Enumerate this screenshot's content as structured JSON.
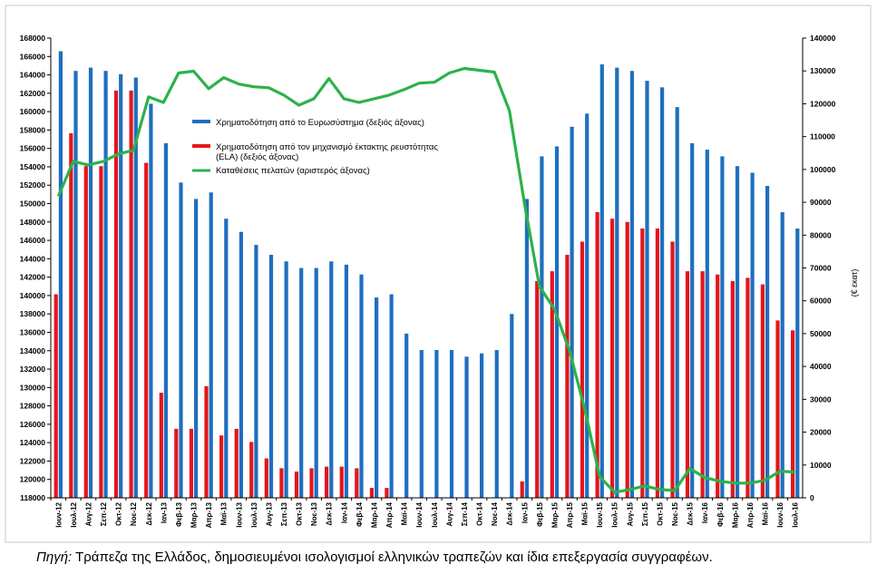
{
  "chart_data": {
    "type": "bar",
    "categories": [
      "Ιουν-12",
      "Ιουλ-12",
      "Αυγ-12",
      "Σεπ-12",
      "Οκτ-12",
      "Νοε-12",
      "Δεκ-12",
      "Ιαν-13",
      "Φεβ-13",
      "Μαρ-13",
      "Απρ-13",
      "Μαϊ-13",
      "Ιουν-13",
      "Ιουλ-13",
      "Αυγ-13",
      "Σεπ-13",
      "Οκτ-13",
      "Νοε-13",
      "Δεκ-13",
      "Ιαν-14",
      "Φεβ-14",
      "Μαρ-14",
      "Απρ-14",
      "Μαϊ-14",
      "Ιουν-14",
      "Ιουλ-14",
      "Αυγ-14",
      "Σεπ-14",
      "Οκτ-14",
      "Νοε-14",
      "Δεκ-14",
      "Ιαν-15",
      "Φεβ-15",
      "Μαρ-15",
      "Απρ-15",
      "Μαϊ-15",
      "Ιουν-15",
      "Ιουλ-15",
      "Αυγ-15",
      "Σεπ-15",
      "Οκτ-15",
      "Νοε-15",
      "Δεκ-15",
      "Ιαν-16",
      "Φεβ-16",
      "Μαρ-16",
      "Απρ-16",
      "Μαϊ-16",
      "Ιουν-16",
      "Ιουλ-16"
    ],
    "series": [
      {
        "name": "Χρηματοδότηση από το Ευρωσύστημα (δεξιός άξονας)",
        "axis": "right",
        "color": "#1f6fbf",
        "values": [
          136000,
          130000,
          131000,
          130000,
          129000,
          128000,
          120000,
          108000,
          96000,
          91000,
          93000,
          85000,
          81000,
          77000,
          74000,
          72000,
          70000,
          70000,
          72000,
          71000,
          68000,
          61000,
          62000,
          50000,
          45000,
          45000,
          45000,
          43000,
          44000,
          45000,
          56000,
          91000,
          104000,
          107000,
          113000,
          117000,
          132000,
          131000,
          130000,
          127000,
          125000,
          119000,
          108000,
          106000,
          104000,
          101000,
          99000,
          95000,
          87000,
          82000
        ]
      },
      {
        "name": "Χρηματοδότηση από τον μηχανισμό έκτακτης ρευστότητας (ELA) (δεξιός άξονας)",
        "axis": "right",
        "color": "#e3161b",
        "values": [
          62000,
          111000,
          101000,
          101000,
          124000,
          124000,
          102000,
          32000,
          21000,
          21000,
          34000,
          19000,
          21000,
          17000,
          12000,
          9000,
          8000,
          9000,
          9500,
          9500,
          9000,
          3000,
          3000,
          0,
          0,
          0,
          0,
          0,
          0,
          0,
          0,
          5000,
          66000,
          69000,
          74000,
          78000,
          87000,
          85000,
          84000,
          82000,
          82000,
          78000,
          69000,
          69000,
          68000,
          66000,
          67000,
          65000,
          54000,
          51000
        ]
      },
      {
        "name": "Καταθέσεις πελατών (αριστερός άξονας)",
        "axis": "left",
        "type": "line",
        "color": "#2cb24a",
        "values": [
          150800,
          154600,
          154200,
          154600,
          155400,
          155800,
          161600,
          161000,
          164200,
          164400,
          162500,
          163700,
          163000,
          162700,
          162600,
          161800,
          160700,
          161400,
          163600,
          161400,
          161000,
          161400,
          161800,
          162400,
          163100,
          163200,
          164200,
          164700,
          164500,
          164300,
          160100,
          150000,
          141000,
          138500,
          134000,
          127700,
          120300,
          118600,
          118900,
          119300,
          118900,
          118800,
          121200,
          120200,
          119800,
          119600,
          119600,
          119900,
          120900,
          120800
        ]
      }
    ],
    "left_ylim": [
      118000,
      168000
    ],
    "left_yticks": [
      118000,
      120000,
      122000,
      124000,
      126000,
      128000,
      130000,
      132000,
      134000,
      136000,
      138000,
      140000,
      142000,
      144000,
      146000,
      148000,
      150000,
      152000,
      154000,
      156000,
      158000,
      160000,
      162000,
      164000,
      166000,
      168000
    ],
    "right_ylim": [
      0,
      140000
    ],
    "right_yticks": [
      0,
      10000,
      20000,
      30000,
      40000,
      50000,
      60000,
      70000,
      80000,
      90000,
      100000,
      110000,
      120000,
      130000,
      140000
    ],
    "ylabel_right": "(€ εκατ)",
    "xlabel": "",
    "title": "",
    "legend_position": "upper-middle",
    "grid": false
  },
  "caption": {
    "lead": "Πηγή:",
    "text": " Τράπεζα της Ελλάδος, δημοσιευμένοι ισολογισμοί ελληνικών τραπεζών και ίδια επεξεργασία συγγραφέων."
  }
}
